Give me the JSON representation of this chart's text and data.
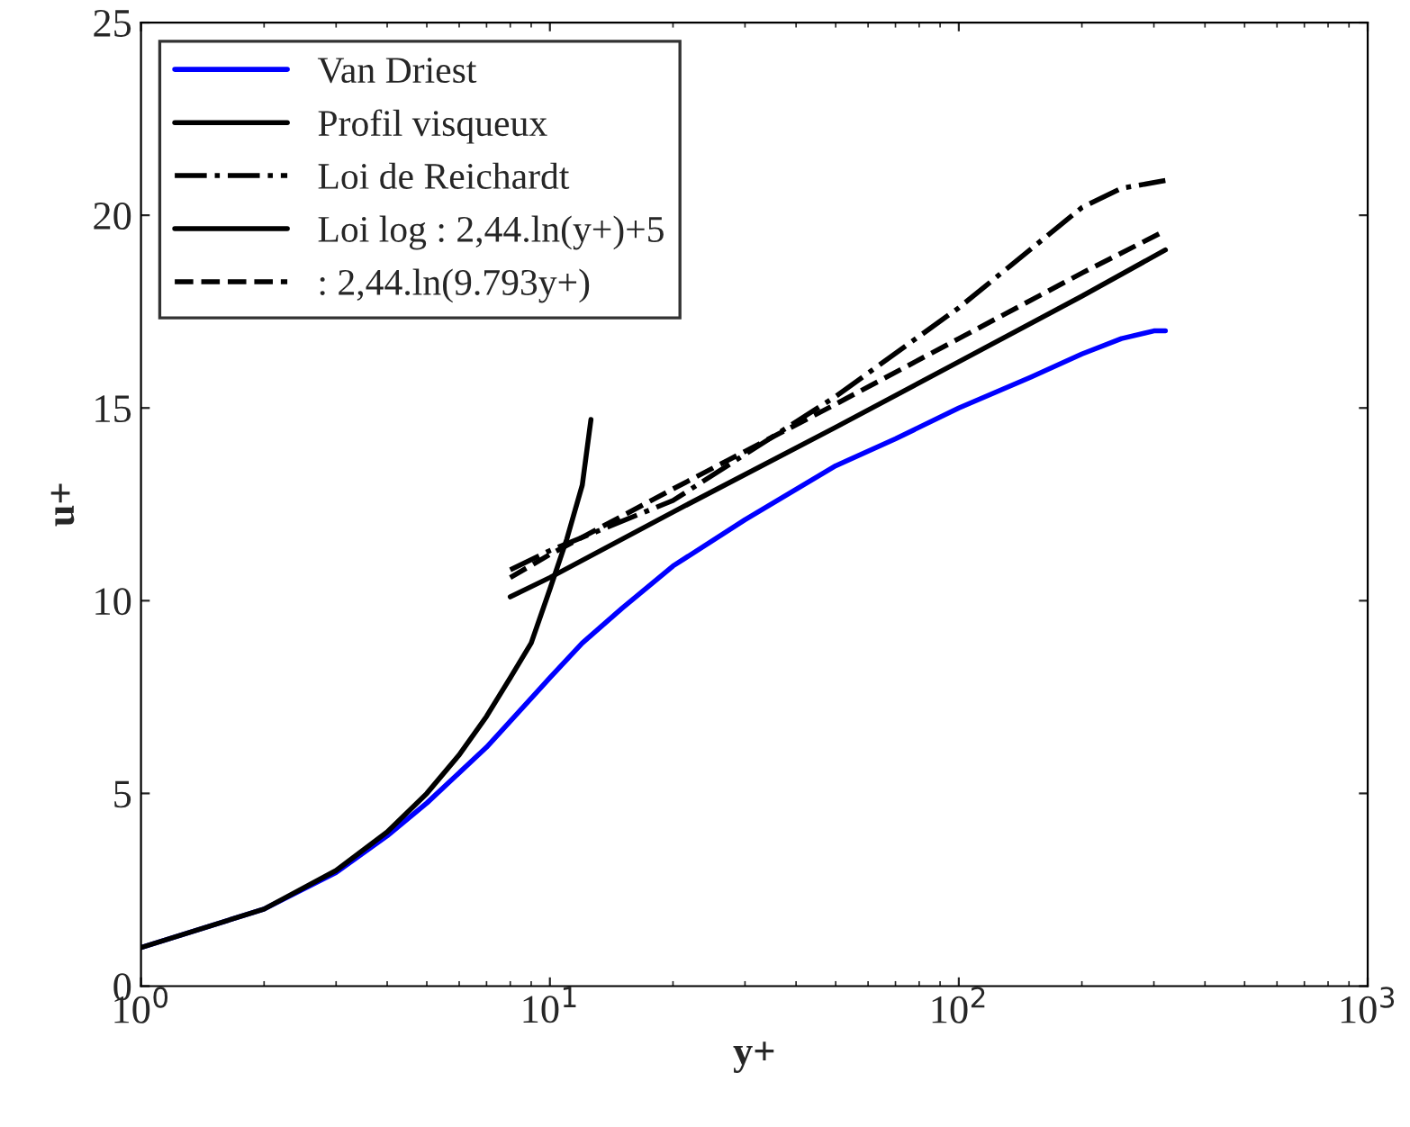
{
  "chart_data": {
    "type": "line",
    "xlabel": "y+",
    "ylabel": "u+",
    "log": "x",
    "xlim": [
      1,
      1000
    ],
    "xticks": [
      {
        "value": 1,
        "label": "10$^{0}$"
      },
      {
        "value": 10,
        "label": "10$^{1}$"
      },
      {
        "value": 100,
        "label": "10$^{2}$"
      },
      {
        "value": 1000,
        "label": "10$^{3}$"
      }
    ],
    "ylim": [
      0,
      25
    ],
    "yticks": [
      0,
      5,
      10,
      15,
      20,
      25
    ],
    "grid": false,
    "legend": "top left",
    "marker": "none",
    "series": [
      {
        "name": "Van Driest",
        "color": "#0000ff",
        "line_style": "solid",
        "x": [
          1,
          2,
          3,
          4,
          5,
          7,
          10,
          12,
          15,
          20,
          30,
          50,
          70,
          100,
          150,
          200,
          250,
          300,
          320
        ],
        "values": [
          1,
          2,
          2.95,
          3.9,
          4.75,
          6.2,
          8,
          8.9,
          9.8,
          10.9,
          12.1,
          13.5,
          14.2,
          15,
          15.8,
          16.4,
          16.8,
          17,
          17
        ]
      },
      {
        "name": "Profil visqueux",
        "color": "#000000",
        "line_style": "solid",
        "x": [
          1,
          2,
          3,
          4,
          5,
          6,
          7,
          8,
          9,
          10,
          11,
          12,
          12.6
        ],
        "values": [
          1,
          2,
          3,
          4,
          5,
          6,
          7,
          8,
          8.9,
          10.3,
          11.6,
          13,
          14.7
        ]
      },
      {
        "name": "Loi de Reichardt",
        "color": "#000000",
        "line_style": "dashdot",
        "x": [
          8,
          10,
          20,
          50,
          100,
          200,
          250,
          320
        ],
        "values": [
          10.8,
          11.3,
          12.6,
          15.3,
          17.6,
          20.2,
          20.7,
          20.9
        ]
      },
      {
        "name": "Loi log : 2,44.ln(y+)+5",
        "color": "#000000",
        "line_style": "solid",
        "x": [
          8,
          10,
          20,
          50,
          100,
          200,
          320
        ],
        "values": [
          10.1,
          10.6,
          12.3,
          14.5,
          16.2,
          17.9,
          19.1
        ]
      },
      {
        "name": ": 2,44.ln(9.793y+)",
        "color": "#000000",
        "line_style": "dashed",
        "x": [
          8,
          10,
          20,
          50,
          100,
          200,
          320
        ],
        "values": [
          10.6,
          11.2,
          12.9,
          15.1,
          16.8,
          18.5,
          19.6
        ]
      }
    ]
  }
}
